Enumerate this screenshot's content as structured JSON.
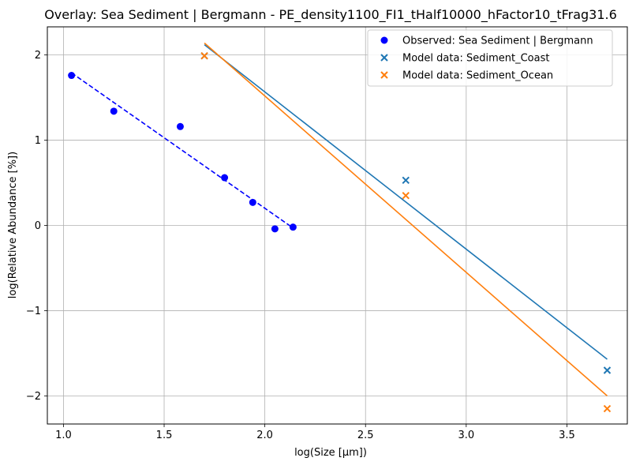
{
  "chart_data": {
    "type": "scatter",
    "title": "Overlay: Sea Sediment | Bergmann - PE_density1100_FI1_tHalf10000_hFactor10_tFrag31.6",
    "xlabel": "log(Size [μm])",
    "ylabel": "log(Relative Abundance [%])",
    "xlim": [
      0.92,
      3.8
    ],
    "ylim": [
      -2.33,
      2.33
    ],
    "x_ticks": [
      1.0,
      1.5,
      2.0,
      2.5,
      3.0,
      3.5
    ],
    "x_tick_labels": [
      "1.0",
      "1.5",
      "2.0",
      "2.5",
      "3.0",
      "3.5"
    ],
    "y_ticks": [
      -2,
      -1,
      0,
      1,
      2
    ],
    "y_tick_labels": [
      "−2",
      "−1",
      "0",
      "1",
      "2"
    ],
    "grid": true,
    "legend_position": "top-right",
    "series": [
      {
        "name": "Observed: Sea Sediment | Bergmann",
        "marker": "circle",
        "color": "#0000ff",
        "points": [
          {
            "x": 1.04,
            "y": 1.76
          },
          {
            "x": 1.25,
            "y": 1.34
          },
          {
            "x": 1.58,
            "y": 1.16
          },
          {
            "x": 1.8,
            "y": 0.56
          },
          {
            "x": 1.94,
            "y": 0.27
          },
          {
            "x": 2.05,
            "y": -0.04
          },
          {
            "x": 2.14,
            "y": -0.02
          }
        ],
        "fit": {
          "style": "dashed",
          "color": "#0000ff",
          "x": [
            1.04,
            2.14
          ],
          "y": [
            1.79,
            -0.03
          ]
        }
      },
      {
        "name": "Model data: Sediment_Coast",
        "marker": "x",
        "color": "#1f77b4",
        "points": [
          {
            "x": 1.7,
            "y": 1.99
          },
          {
            "x": 2.7,
            "y": 0.53
          },
          {
            "x": 3.7,
            "y": -1.7
          }
        ],
        "fit": {
          "style": "solid",
          "color": "#1f77b4",
          "x": [
            1.7,
            3.7
          ],
          "y": [
            2.12,
            -1.57
          ]
        }
      },
      {
        "name": "Model data: Sediment_Ocean",
        "marker": "x",
        "color": "#ff7f0e",
        "points": [
          {
            "x": 1.7,
            "y": 1.99
          },
          {
            "x": 2.7,
            "y": 0.35
          },
          {
            "x": 3.7,
            "y": -2.15
          }
        ],
        "fit": {
          "style": "solid",
          "color": "#ff7f0e",
          "x": [
            1.7,
            3.7
          ],
          "y": [
            2.14,
            -2.0
          ]
        }
      }
    ]
  }
}
